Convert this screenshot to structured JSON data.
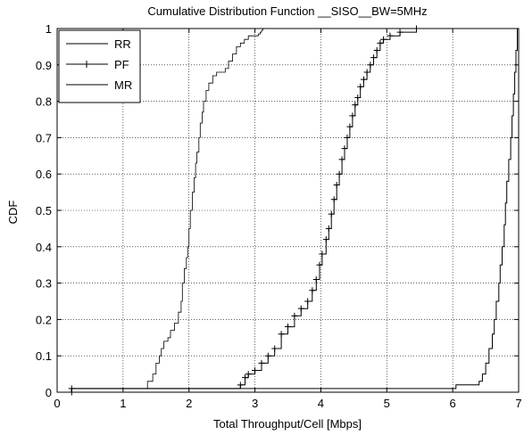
{
  "chart_data": {
    "type": "line",
    "title": "Cumulative Distribution Function __SISO__BW=5MHz",
    "xlabel": "Total Throughput/Cell [Mbps]",
    "ylabel": "CDF",
    "xlim": [
      0,
      7
    ],
    "ylim": [
      0,
      1
    ],
    "xticks": [
      "0",
      "1",
      "2",
      "3",
      "4",
      "5",
      "6",
      "7"
    ],
    "yticks": [
      "0",
      "0.1",
      "0.2",
      "0.3",
      "0.4",
      "0.5",
      "0.6",
      "0.7",
      "0.8",
      "0.9",
      "1"
    ],
    "grid": true,
    "legend_position": "top-left",
    "series": [
      {
        "name": "RR",
        "marker": "none",
        "x": [
          0.22,
          0.22,
          1.32,
          1.37,
          1.45,
          1.5,
          1.55,
          1.58,
          1.62,
          1.68,
          1.72,
          1.78,
          1.84,
          1.88,
          1.9,
          1.93,
          1.96,
          1.98,
          2.0,
          2.02,
          2.05,
          2.08,
          2.1,
          2.12,
          2.15,
          2.17,
          2.2,
          2.22,
          2.26,
          2.3,
          2.36,
          2.42,
          2.55,
          2.6,
          2.66,
          2.72,
          2.78,
          2.84,
          2.9,
          3.0,
          3.05,
          3.08,
          3.1,
          3.12
        ],
        "y": [
          0,
          0.01,
          0.01,
          0.03,
          0.05,
          0.08,
          0.1,
          0.12,
          0.14,
          0.15,
          0.17,
          0.19,
          0.22,
          0.25,
          0.3,
          0.34,
          0.37,
          0.4,
          0.45,
          0.5,
          0.55,
          0.59,
          0.63,
          0.66,
          0.7,
          0.74,
          0.77,
          0.8,
          0.83,
          0.85,
          0.87,
          0.88,
          0.89,
          0.91,
          0.93,
          0.95,
          0.96,
          0.97,
          0.98,
          0.98,
          0.985,
          0.99,
          0.995,
          1.0
        ]
      },
      {
        "name": "PF",
        "marker": "+",
        "x": [
          0.22,
          0.22,
          2.78,
          2.85,
          2.9,
          3.0,
          3.1,
          3.2,
          3.3,
          3.4,
          3.5,
          3.6,
          3.7,
          3.8,
          3.87,
          3.93,
          3.98,
          4.02,
          4.08,
          4.12,
          4.16,
          4.2,
          4.24,
          4.28,
          4.32,
          4.36,
          4.4,
          4.44,
          4.48,
          4.52,
          4.56,
          4.6,
          4.65,
          4.7,
          4.75,
          4.8,
          4.85,
          4.9,
          4.95,
          5.05,
          5.2,
          5.45
        ],
        "y": [
          0,
          0.01,
          0.02,
          0.04,
          0.05,
          0.06,
          0.08,
          0.1,
          0.12,
          0.16,
          0.18,
          0.21,
          0.23,
          0.25,
          0.28,
          0.31,
          0.35,
          0.38,
          0.42,
          0.45,
          0.49,
          0.53,
          0.57,
          0.6,
          0.64,
          0.67,
          0.7,
          0.73,
          0.76,
          0.79,
          0.81,
          0.84,
          0.86,
          0.88,
          0.9,
          0.92,
          0.94,
          0.96,
          0.97,
          0.98,
          0.99,
          1.0
        ]
      },
      {
        "name": "MR",
        "marker": "none",
        "x": [
          0.22,
          0.22,
          5.98,
          6.05,
          6.1,
          6.2,
          6.35,
          6.4,
          6.45,
          6.5,
          6.55,
          6.6,
          6.63,
          6.66,
          6.7,
          6.72,
          6.75,
          6.78,
          6.8,
          6.82,
          6.85,
          6.88,
          6.9,
          6.92,
          6.94,
          6.96,
          6.98
        ],
        "y": [
          0,
          0.01,
          0.01,
          0.02,
          0.02,
          0.02,
          0.02,
          0.03,
          0.05,
          0.08,
          0.12,
          0.16,
          0.2,
          0.25,
          0.3,
          0.35,
          0.4,
          0.46,
          0.52,
          0.58,
          0.64,
          0.7,
          0.76,
          0.82,
          0.88,
          0.94,
          1.0
        ]
      }
    ]
  }
}
